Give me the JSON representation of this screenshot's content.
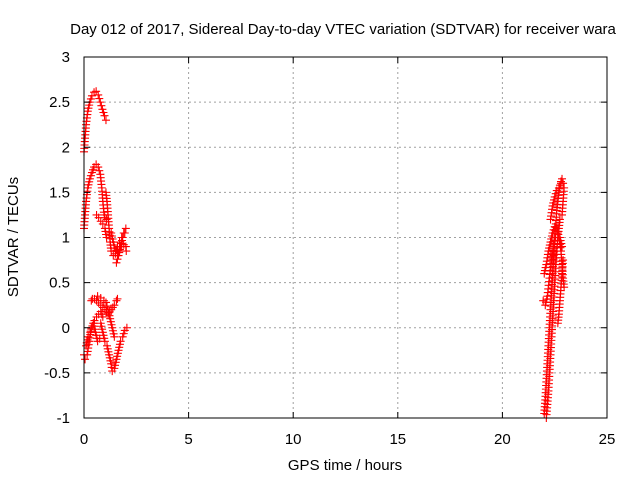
{
  "chart_data": {
    "type": "scatter",
    "title": "Day 012 of 2017, Sidereal Day-to-day VTEC variation (SDTVAR) for receiver wara",
    "xlabel": "GPS time / hours",
    "ylabel": "SDTVAR / TECUs",
    "xlim": [
      0,
      25
    ],
    "ylim": [
      -1,
      3
    ],
    "xticks": [
      0,
      5,
      10,
      15,
      20,
      25
    ],
    "yticks": [
      -1,
      -0.5,
      0,
      0.5,
      1,
      1.5,
      2,
      2.5,
      3
    ],
    "xtick_labels": [
      "0",
      "5",
      "10",
      "15",
      "20",
      "25"
    ],
    "ytick_labels": [
      "-1",
      "-0.5",
      "0",
      "0.5",
      "1",
      "1.5",
      "2",
      "2.5",
      "3"
    ],
    "grid": true,
    "marker": "+",
    "color": "#ff0000",
    "series": [
      {
        "name": "SDTVAR",
        "tracks": [
          [
            [
              0.0,
              1.95
            ],
            [
              0.05,
              2.1
            ],
            [
              0.1,
              2.25
            ],
            [
              0.18,
              2.4
            ],
            [
              0.28,
              2.5
            ],
            [
              0.38,
              2.57
            ],
            [
              0.48,
              2.61
            ],
            [
              0.58,
              2.62
            ],
            [
              0.68,
              2.58
            ],
            [
              0.78,
              2.5
            ],
            [
              0.88,
              2.42
            ],
            [
              0.98,
              2.35
            ],
            [
              1.05,
              2.3
            ]
          ],
          [
            [
              0.0,
              1.1
            ],
            [
              0.05,
              1.25
            ],
            [
              0.1,
              1.4
            ],
            [
              0.18,
              1.55
            ],
            [
              0.28,
              1.65
            ],
            [
              0.38,
              1.72
            ],
            [
              0.48,
              1.78
            ],
            [
              0.58,
              1.81
            ],
            [
              0.68,
              1.78
            ],
            [
              0.78,
              1.7
            ],
            [
              0.85,
              1.55
            ],
            [
              0.9,
              1.4
            ],
            [
              0.95,
              1.28
            ],
            [
              1.0,
              1.22
            ],
            [
              1.08,
              1.2
            ]
          ],
          [
            [
              0.6,
              1.25
            ],
            [
              0.7,
              1.22
            ],
            [
              0.8,
              1.18
            ],
            [
              0.9,
              1.15
            ],
            [
              1.0,
              1.1
            ],
            [
              1.08,
              1.0
            ]
          ],
          [
            [
              1.05,
              1.5
            ],
            [
              1.1,
              1.4
            ],
            [
              1.15,
              1.25
            ],
            [
              1.2,
              1.1
            ],
            [
              1.25,
              0.95
            ],
            [
              1.3,
              0.85
            ],
            [
              1.4,
              0.8
            ],
            [
              1.5,
              0.82
            ],
            [
              1.6,
              0.9
            ],
            [
              1.7,
              0.95
            ],
            [
              1.8,
              1.0
            ],
            [
              1.9,
              1.05
            ],
            [
              2.0,
              1.1
            ]
          ],
          [
            [
              1.3,
              1.05
            ],
            [
              1.4,
              0.95
            ],
            [
              1.5,
              0.85
            ],
            [
              1.6,
              0.8
            ],
            [
              1.7,
              0.85
            ],
            [
              1.8,
              0.9
            ],
            [
              1.9,
              0.92
            ],
            [
              2.0,
              0.9
            ],
            [
              2.02,
              0.85
            ]
          ],
          [
            [
              1.55,
              0.72
            ],
            [
              1.65,
              0.8
            ],
            [
              1.75,
              0.9
            ],
            [
              1.85,
              1.0
            ],
            [
              1.95,
              1.05
            ]
          ],
          [
            [
              0.35,
              0.3
            ],
            [
              0.5,
              0.32
            ],
            [
              0.65,
              0.35
            ],
            [
              0.8,
              0.33
            ],
            [
              0.95,
              0.3
            ],
            [
              1.05,
              0.28
            ],
            [
              1.15,
              0.2
            ],
            [
              1.25,
              0.1
            ],
            [
              1.35,
              0.0
            ],
            [
              1.45,
              -0.1
            ]
          ],
          [
            [
              0.4,
              0.32
            ],
            [
              0.6,
              0.3
            ],
            [
              0.8,
              0.25
            ],
            [
              1.0,
              0.2
            ],
            [
              1.15,
              0.15
            ],
            [
              1.3,
              0.2
            ],
            [
              1.45,
              0.25
            ],
            [
              1.55,
              0.3
            ],
            [
              1.6,
              0.32
            ]
          ],
          [
            [
              0.0,
              -0.3
            ],
            [
              0.05,
              -0.35
            ],
            [
              0.15,
              -0.3
            ],
            [
              0.25,
              -0.15
            ],
            [
              0.35,
              0.0
            ],
            [
              0.45,
              0.05
            ],
            [
              0.55,
              -0.05
            ],
            [
              0.65,
              -0.15
            ],
            [
              0.75,
              -0.12
            ]
          ],
          [
            [
              0.1,
              -0.2
            ],
            [
              0.2,
              -0.1
            ],
            [
              0.3,
              -0.05
            ],
            [
              0.4,
              0.02
            ],
            [
              0.5,
              0.08
            ],
            [
              0.6,
              0.12
            ],
            [
              0.7,
              0.15
            ],
            [
              0.8,
              0.18
            ],
            [
              0.9,
              0.12
            ]
          ],
          [
            [
              0.8,
              0.05
            ],
            [
              0.9,
              -0.05
            ],
            [
              1.0,
              -0.15
            ],
            [
              1.1,
              -0.2
            ],
            [
              1.2,
              -0.3
            ],
            [
              1.3,
              -0.4
            ],
            [
              1.35,
              -0.48
            ],
            [
              1.45,
              -0.45
            ],
            [
              1.55,
              -0.35
            ],
            [
              1.65,
              -0.25
            ],
            [
              1.75,
              -0.15
            ],
            [
              1.85,
              -0.1
            ],
            [
              1.95,
              -0.03
            ],
            [
              2.05,
              0.0
            ]
          ],
          [
            [
              22.0,
              -0.95
            ],
            [
              22.05,
              -0.8
            ],
            [
              22.1,
              -0.6
            ],
            [
              22.15,
              -0.4
            ],
            [
              22.2,
              -0.2
            ],
            [
              22.25,
              0.0
            ],
            [
              22.3,
              0.2
            ],
            [
              22.35,
              0.4
            ],
            [
              22.4,
              0.6
            ],
            [
              22.45,
              0.8
            ],
            [
              22.5,
              1.0
            ],
            [
              22.55,
              1.15
            ],
            [
              22.6,
              1.3
            ],
            [
              22.65,
              1.4
            ],
            [
              22.7,
              1.5
            ],
            [
              22.75,
              1.58
            ],
            [
              22.8,
              1.62
            ],
            [
              22.85,
              1.65
            ]
          ],
          [
            [
              22.1,
              -1.0
            ],
            [
              22.15,
              -0.85
            ],
            [
              22.2,
              -0.7
            ],
            [
              22.25,
              -0.5
            ],
            [
              22.3,
              -0.3
            ],
            [
              22.35,
              -0.1
            ],
            [
              22.4,
              0.1
            ],
            [
              22.45,
              0.3
            ],
            [
              22.5,
              0.5
            ],
            [
              22.55,
              0.7
            ],
            [
              22.6,
              0.85
            ],
            [
              22.65,
              1.0
            ],
            [
              22.7,
              1.1
            ],
            [
              22.75,
              1.2
            ]
          ],
          [
            [
              21.95,
              0.3
            ],
            [
              22.05,
              0.25
            ],
            [
              22.15,
              0.35
            ],
            [
              22.25,
              0.55
            ],
            [
              22.35,
              0.75
            ],
            [
              22.45,
              0.9
            ],
            [
              22.55,
              1.0
            ],
            [
              22.65,
              1.05
            ],
            [
              22.75,
              1.0
            ],
            [
              22.85,
              0.9
            ]
          ],
          [
            [
              22.0,
              0.6
            ],
            [
              22.1,
              0.7
            ],
            [
              22.2,
              0.85
            ],
            [
              22.3,
              0.95
            ],
            [
              22.4,
              1.05
            ],
            [
              22.5,
              1.12
            ],
            [
              22.6,
              1.1
            ],
            [
              22.7,
              1.0
            ],
            [
              22.8,
              0.85
            ],
            [
              22.85,
              0.7
            ],
            [
              22.9,
              0.55
            ],
            [
              22.95,
              0.45
            ]
          ],
          [
            [
              22.3,
              1.2
            ],
            [
              22.4,
              1.35
            ],
            [
              22.5,
              1.45
            ],
            [
              22.6,
              1.52
            ],
            [
              22.7,
              1.55
            ],
            [
              22.8,
              1.6
            ],
            [
              22.9,
              1.6
            ],
            [
              22.95,
              1.55
            ],
            [
              22.9,
              1.4
            ],
            [
              22.85,
              1.25
            ]
          ],
          [
            [
              22.9,
              0.75
            ],
            [
              22.85,
              0.6
            ],
            [
              22.8,
              0.45
            ],
            [
              22.75,
              0.3
            ],
            [
              22.7,
              0.15
            ],
            [
              22.65,
              0.05
            ]
          ]
        ]
      }
    ]
  }
}
